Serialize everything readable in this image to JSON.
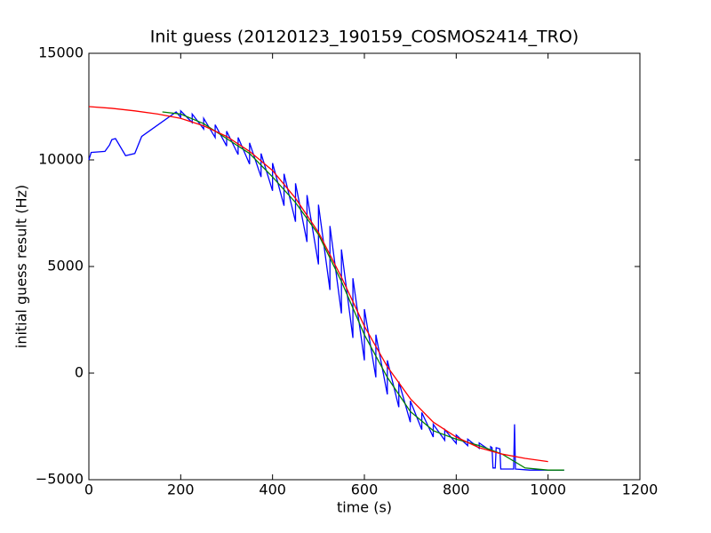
{
  "chart_data": {
    "type": "line",
    "title": "Init guess (20120123_190159_COSMOS2414_TRO)",
    "xlabel": "time (s)",
    "ylabel": "initial guess result (Hz)",
    "xlim": [
      0,
      1200
    ],
    "ylim": [
      -5000,
      15000
    ],
    "xticks": [
      0,
      200,
      400,
      600,
      800,
      1000,
      1200
    ],
    "yticks": [
      {
        "value": -5000,
        "label": "−5000"
      },
      0,
      5000,
      10000,
      15000
    ],
    "series": [
      {
        "color": "#0000ff",
        "x": [
          0,
          5,
          35,
          45,
          50,
          58,
          80,
          100,
          115,
          190,
          200,
          200,
          225,
          225,
          250,
          250,
          275,
          275,
          300,
          300,
          325,
          325,
          350,
          350,
          375,
          375,
          400,
          400,
          425,
          425,
          450,
          450,
          475,
          475,
          500,
          500,
          525,
          525,
          550,
          550,
          575,
          575,
          600,
          600,
          625,
          625,
          650,
          650,
          675,
          675,
          700,
          700,
          725,
          725,
          750,
          750,
          775,
          775,
          800,
          800,
          825,
          825,
          850,
          850,
          875,
          875,
          878,
          880,
          885,
          887,
          895,
          897,
          925,
          927,
          929,
          960,
          1035
        ],
        "values": [
          10000,
          10350,
          10400,
          10700,
          10950,
          11000,
          10200,
          10300,
          11100,
          12250,
          12000,
          12300,
          11750,
          12150,
          11450,
          11950,
          11050,
          11650,
          10650,
          11350,
          10250,
          11050,
          9800,
          10800,
          9200,
          10300,
          8550,
          9850,
          7850,
          9350,
          7100,
          8900,
          6150,
          8350,
          5100,
          7900,
          3900,
          6900,
          2800,
          5800,
          1650,
          4450,
          600,
          3000,
          -200,
          1800,
          -1000,
          600,
          -1600,
          -400,
          -2300,
          -1300,
          -2650,
          -1850,
          -3000,
          -2400,
          -3150,
          -2650,
          -3300,
          -2900,
          -3400,
          -3100,
          -3525,
          -3275,
          -3650,
          -3450,
          -3500,
          -4450,
          -4450,
          -3500,
          -3550,
          -4500,
          -4500,
          -2400,
          -4500,
          -4550,
          -4550
        ]
      },
      {
        "color": "#008000",
        "x": [
          160,
          200,
          250,
          300,
          350,
          400,
          450,
          500,
          550,
          600,
          650,
          700,
          750,
          800,
          850,
          900,
          950,
          1000,
          1035
        ],
        "values": [
          12250,
          12150,
          11700,
          11000,
          10300,
          9200,
          8000,
          6500,
          4300,
          1800,
          -200,
          -1800,
          -2700,
          -3100,
          -3400,
          -3800,
          -4450,
          -4550,
          -4550
        ]
      },
      {
        "color": "#ff0000",
        "x": [
          0,
          50,
          100,
          150,
          200,
          250,
          300,
          350,
          400,
          450,
          500,
          550,
          600,
          650,
          700,
          750,
          800,
          850,
          900,
          950,
          1000
        ],
        "values": [
          12500,
          12420,
          12300,
          12150,
          11950,
          11600,
          11100,
          10400,
          9500,
          8200,
          6600,
          4500,
          2200,
          300,
          -1200,
          -2300,
          -3000,
          -3500,
          -3800,
          -4000,
          -4150
        ]
      }
    ]
  }
}
